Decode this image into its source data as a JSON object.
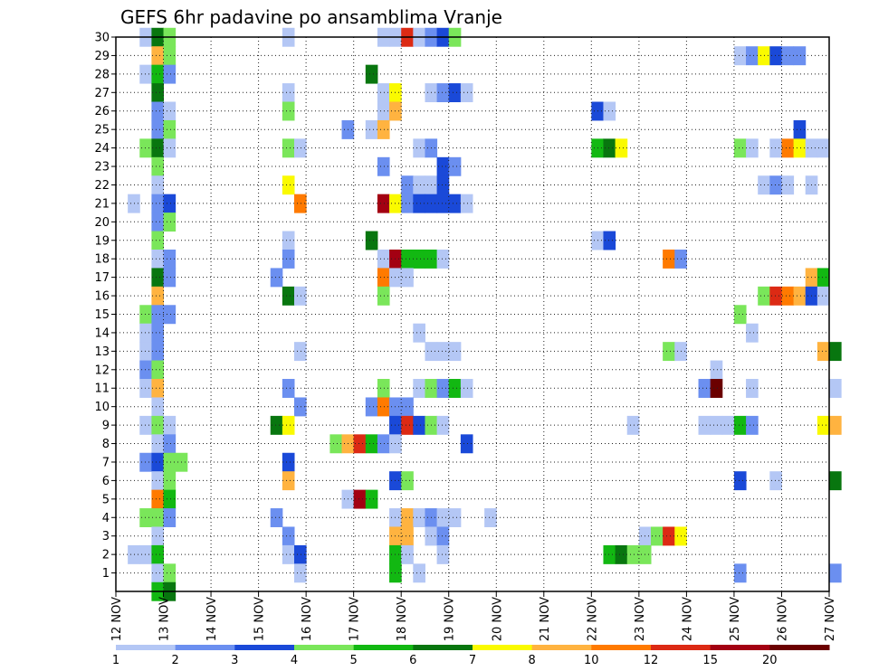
{
  "chart_data": {
    "type": "heatmap",
    "title": "GEFS 6hr padavine po ansamblima Vranje",
    "xlabel": "",
    "ylabel": "",
    "x_ticks": [
      "12 NOV",
      "13 NOV",
      "14 NOV",
      "15 NOV",
      "16 NOV",
      "17 NOV",
      "18 NOV",
      "19 NOV",
      "20 NOV",
      "21 NOV",
      "22 NOV",
      "23 NOV",
      "24 NOV",
      "25 NOV",
      "26 NOV",
      "27 NOV"
    ],
    "y_ticks": [
      1,
      2,
      3,
      4,
      5,
      6,
      7,
      8,
      9,
      10,
      11,
      12,
      13,
      14,
      15,
      16,
      17,
      18,
      19,
      20,
      21,
      22,
      23,
      24,
      25,
      26,
      27,
      28,
      29,
      30
    ],
    "x_range_days": [
      12,
      27
    ],
    "y_range": [
      0,
      30
    ],
    "grid": true,
    "legend": {
      "placement": "bottom",
      "labels": [
        "1",
        "2",
        "3",
        "4",
        "5",
        "6",
        "7",
        "8",
        "10",
        "12",
        "15",
        "20"
      ],
      "colors": [
        "#b4c7f5",
        "#6b8ff0",
        "#1a49d8",
        "#7ae65a",
        "#12b812",
        "#08760f",
        "#fafa00",
        "#ffb340",
        "#ff7a00",
        "#dc2a14",
        "#a30012",
        "#6b0000"
      ]
    },
    "cells": [
      [
        30,
        12.5,
        1
      ],
      [
        30,
        12.75,
        6
      ],
      [
        30,
        13,
        4
      ],
      [
        30,
        15.5,
        1
      ],
      [
        30,
        17.5,
        1
      ],
      [
        30,
        17.75,
        1
      ],
      [
        30,
        18,
        10
      ],
      [
        30,
        18.25,
        1
      ],
      [
        30,
        18.5,
        2
      ],
      [
        30,
        18.75,
        3
      ],
      [
        30,
        19,
        4
      ],
      [
        29,
        12.75,
        8
      ],
      [
        29,
        13,
        4
      ],
      [
        29,
        25,
        1
      ],
      [
        29,
        25.25,
        2
      ],
      [
        29,
        25.5,
        7
      ],
      [
        29,
        25.75,
        3
      ],
      [
        29,
        26,
        2
      ],
      [
        29,
        26.25,
        2
      ],
      [
        28,
        12.5,
        1
      ],
      [
        28,
        12.75,
        5
      ],
      [
        28,
        13,
        2
      ],
      [
        28,
        17.25,
        6
      ],
      [
        27,
        12.75,
        6
      ],
      [
        27,
        15.5,
        1
      ],
      [
        27,
        17.5,
        1
      ],
      [
        27,
        17.75,
        7
      ],
      [
        27,
        18.5,
        1
      ],
      [
        27,
        18.75,
        2
      ],
      [
        27,
        19,
        3
      ],
      [
        27,
        19.25,
        1
      ],
      [
        26,
        12.75,
        2
      ],
      [
        26,
        13,
        1
      ],
      [
        26,
        15.5,
        4
      ],
      [
        26,
        17.5,
        1
      ],
      [
        26,
        17.75,
        8
      ],
      [
        26,
        22,
        3
      ],
      [
        26,
        22.25,
        1
      ],
      [
        25,
        12.75,
        2
      ],
      [
        25,
        13,
        4
      ],
      [
        25,
        16.75,
        2
      ],
      [
        25,
        17.25,
        1
      ],
      [
        25,
        17.5,
        8
      ],
      [
        25,
        26.25,
        3
      ],
      [
        24,
        12.5,
        4
      ],
      [
        24,
        12.75,
        6
      ],
      [
        24,
        13,
        1
      ],
      [
        24,
        15.5,
        4
      ],
      [
        24,
        15.75,
        1
      ],
      [
        24,
        18.25,
        1
      ],
      [
        24,
        18.5,
        2
      ],
      [
        24,
        22,
        5
      ],
      [
        24,
        22.25,
        6
      ],
      [
        24,
        22.5,
        7
      ],
      [
        24,
        25,
        4
      ],
      [
        24,
        25.25,
        1
      ],
      [
        24,
        25.75,
        1
      ],
      [
        24,
        26,
        9
      ],
      [
        24,
        26.25,
        7
      ],
      [
        24,
        26.5,
        1
      ],
      [
        24,
        26.75,
        1
      ],
      [
        23,
        12.75,
        4
      ],
      [
        23,
        17.5,
        2
      ],
      [
        23,
        18.75,
        3
      ],
      [
        23,
        19,
        2
      ],
      [
        22,
        12.75,
        1
      ],
      [
        22,
        15.5,
        7
      ],
      [
        22,
        18,
        2
      ],
      [
        22,
        18.25,
        1
      ],
      [
        22,
        18.5,
        1
      ],
      [
        22,
        18.75,
        3
      ],
      [
        22,
        25.5,
        1
      ],
      [
        22,
        25.75,
        2
      ],
      [
        22,
        26,
        1
      ],
      [
        22,
        26.5,
        1
      ],
      [
        21,
        12.25,
        1
      ],
      [
        21,
        12.75,
        2
      ],
      [
        21,
        13,
        3
      ],
      [
        21,
        15.75,
        9
      ],
      [
        21,
        17.5,
        11
      ],
      [
        21,
        17.75,
        7
      ],
      [
        21,
        18,
        2
      ],
      [
        21,
        18.25,
        3
      ],
      [
        21,
        18.5,
        3
      ],
      [
        21,
        18.75,
        3
      ],
      [
        21,
        19,
        3
      ],
      [
        21,
        19.25,
        1
      ],
      [
        20,
        12.75,
        2
      ],
      [
        20,
        13,
        4
      ],
      [
        19,
        12.75,
        4
      ],
      [
        19,
        15.5,
        1
      ],
      [
        19,
        17.25,
        6
      ],
      [
        19,
        22,
        1
      ],
      [
        19,
        22.25,
        3
      ],
      [
        18,
        12.75,
        1
      ],
      [
        18,
        13,
        2
      ],
      [
        18,
        15.5,
        2
      ],
      [
        18,
        17.5,
        1
      ],
      [
        18,
        17.75,
        11
      ],
      [
        18,
        18,
        5
      ],
      [
        18,
        18.25,
        5
      ],
      [
        18,
        18.5,
        5
      ],
      [
        18,
        18.75,
        1
      ],
      [
        18,
        23.5,
        9
      ],
      [
        18,
        23.75,
        2
      ],
      [
        17,
        12.75,
        6
      ],
      [
        17,
        13,
        2
      ],
      [
        17,
        15.25,
        2
      ],
      [
        17,
        17.5,
        9
      ],
      [
        17,
        17.75,
        1
      ],
      [
        17,
        18,
        1
      ],
      [
        17,
        26.5,
        8
      ],
      [
        17,
        26.75,
        5
      ],
      [
        16,
        12.75,
        8
      ],
      [
        16,
        15.5,
        6
      ],
      [
        16,
        15.75,
        1
      ],
      [
        16,
        17.5,
        4
      ],
      [
        16,
        25.5,
        4
      ],
      [
        16,
        25.75,
        10
      ],
      [
        16,
        26,
        9
      ],
      [
        16,
        26.25,
        8
      ],
      [
        16,
        26.5,
        3
      ],
      [
        16,
        26.75,
        1
      ],
      [
        15,
        12.5,
        4
      ],
      [
        15,
        12.75,
        2
      ],
      [
        15,
        13,
        2
      ],
      [
        15,
        25,
        4
      ],
      [
        14,
        12.5,
        1
      ],
      [
        14,
        12.75,
        2
      ],
      [
        14,
        18.25,
        1
      ],
      [
        14,
        25.25,
        1
      ],
      [
        13,
        12.5,
        1
      ],
      [
        13,
        12.75,
        2
      ],
      [
        13,
        15.75,
        1
      ],
      [
        13,
        18.5,
        1
      ],
      [
        13,
        18.75,
        1
      ],
      [
        13,
        19,
        1
      ],
      [
        13,
        23.5,
        4
      ],
      [
        13,
        23.75,
        1
      ],
      [
        13,
        26.75,
        8
      ],
      [
        13,
        27,
        6
      ],
      [
        12,
        12.5,
        2
      ],
      [
        12,
        12.75,
        4
      ],
      [
        12,
        24.5,
        1
      ],
      [
        11,
        12.5,
        1
      ],
      [
        11,
        12.75,
        8
      ],
      [
        11,
        15.5,
        2
      ],
      [
        11,
        17.5,
        4
      ],
      [
        11,
        18.25,
        1
      ],
      [
        11,
        18.5,
        4
      ],
      [
        11,
        18.75,
        2
      ],
      [
        11,
        19,
        5
      ],
      [
        11,
        19.25,
        1
      ],
      [
        11,
        24.25,
        2
      ],
      [
        11,
        24.5,
        12
      ],
      [
        11,
        25.25,
        1
      ],
      [
        11,
        27,
        1
      ],
      [
        10,
        12.75,
        1
      ],
      [
        10,
        15.75,
        2
      ],
      [
        10,
        17.25,
        2
      ],
      [
        10,
        17.5,
        9
      ],
      [
        10,
        17.75,
        2
      ],
      [
        10,
        18,
        2
      ],
      [
        9,
        12.5,
        1
      ],
      [
        9,
        12.75,
        4
      ],
      [
        9,
        13,
        1
      ],
      [
        9,
        15.25,
        6
      ],
      [
        9,
        15.5,
        7
      ],
      [
        9,
        17.75,
        3
      ],
      [
        9,
        18,
        10
      ],
      [
        9,
        18.25,
        3
      ],
      [
        9,
        18.5,
        4
      ],
      [
        9,
        18.75,
        1
      ],
      [
        9,
        22.75,
        1
      ],
      [
        9,
        24.25,
        1
      ],
      [
        9,
        24.5,
        1
      ],
      [
        9,
        24.75,
        1
      ],
      [
        9,
        25,
        5
      ],
      [
        9,
        25.25,
        2
      ],
      [
        9,
        26.75,
        7
      ],
      [
        9,
        27,
        8
      ],
      [
        8,
        12.75,
        1
      ],
      [
        8,
        13,
        2
      ],
      [
        8,
        16.5,
        4
      ],
      [
        8,
        16.75,
        8
      ],
      [
        8,
        17,
        10
      ],
      [
        8,
        17.25,
        5
      ],
      [
        8,
        17.5,
        2
      ],
      [
        8,
        17.75,
        1
      ],
      [
        8,
        19.25,
        3
      ],
      [
        7,
        12.5,
        2
      ],
      [
        7,
        12.75,
        3
      ],
      [
        7,
        13,
        4
      ],
      [
        7,
        13.25,
        4
      ],
      [
        7,
        15.5,
        3
      ],
      [
        6,
        12.75,
        1
      ],
      [
        6,
        13,
        4
      ],
      [
        6,
        15.5,
        8
      ],
      [
        6,
        17.75,
        3
      ],
      [
        6,
        18,
        4
      ],
      [
        6,
        25,
        3
      ],
      [
        6,
        25.75,
        1
      ],
      [
        6,
        27,
        6
      ],
      [
        5,
        12.75,
        9
      ],
      [
        5,
        13,
        5
      ],
      [
        5,
        16.75,
        1
      ],
      [
        5,
        17,
        11
      ],
      [
        5,
        17.25,
        5
      ],
      [
        4,
        12.5,
        4
      ],
      [
        4,
        12.75,
        4
      ],
      [
        4,
        13,
        2
      ],
      [
        4,
        15.25,
        2
      ],
      [
        4,
        17.75,
        1
      ],
      [
        4,
        18,
        8
      ],
      [
        4,
        18.25,
        1
      ],
      [
        4,
        18.5,
        2
      ],
      [
        4,
        18.75,
        1
      ],
      [
        4,
        19,
        1
      ],
      [
        4,
        19.75,
        1
      ],
      [
        3,
        12.75,
        1
      ],
      [
        3,
        15.5,
        2
      ],
      [
        3,
        17.75,
        8
      ],
      [
        3,
        18,
        8
      ],
      [
        3,
        18.5,
        1
      ],
      [
        3,
        18.75,
        2
      ],
      [
        3,
        23,
        1
      ],
      [
        3,
        23.25,
        4
      ],
      [
        3,
        23.5,
        10
      ],
      [
        3,
        23.75,
        7
      ],
      [
        2,
        12.25,
        1
      ],
      [
        2,
        12.5,
        1
      ],
      [
        2,
        12.75,
        5
      ],
      [
        2,
        15.5,
        1
      ],
      [
        2,
        15.75,
        3
      ],
      [
        2,
        17.75,
        5
      ],
      [
        2,
        18,
        1
      ],
      [
        2,
        18.75,
        1
      ],
      [
        2,
        22.25,
        5
      ],
      [
        2,
        22.5,
        6
      ],
      [
        2,
        22.75,
        4
      ],
      [
        2,
        23,
        4
      ],
      [
        1,
        12.75,
        1
      ],
      [
        1,
        13,
        4
      ],
      [
        1,
        15.75,
        1
      ],
      [
        1,
        17.75,
        5
      ],
      [
        1,
        18.25,
        1
      ],
      [
        1,
        25,
        2
      ],
      [
        1,
        27,
        2
      ],
      [
        0,
        12.75,
        5
      ],
      [
        0,
        13,
        6
      ]
    ]
  }
}
